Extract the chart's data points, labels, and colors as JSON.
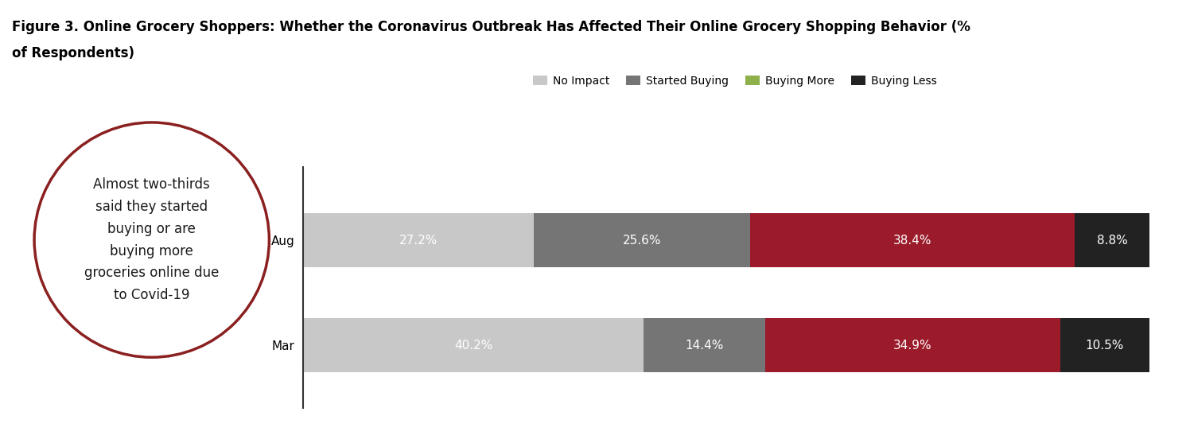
{
  "title_line1": "Figure 3. Online Grocery Shoppers: Whether the Coronavirus Outbreak Has Affected Their Online Grocery Shopping Behavior (%",
  "title_line2": "of Respondents)",
  "categories": [
    "Aug",
    "Mar"
  ],
  "segments": [
    "No Impact",
    "Started Buying",
    "Buying More",
    "Buying Less"
  ],
  "values": {
    "Aug": [
      27.2,
      25.6,
      38.4,
      8.8
    ],
    "Mar": [
      40.2,
      14.4,
      34.9,
      10.5
    ]
  },
  "bar_colors": [
    "#c8c8c8",
    "#757575",
    "#9b1b2a",
    "#222222"
  ],
  "legend_colors": [
    "#c8c8c8",
    "#757575",
    "#8db04a",
    "#222222"
  ],
  "bar_height": 0.52,
  "circle_text": "Almost two-thirds\nsaid they started\nbuying or are\nbuying more\ngroceries online due\nto Covid-19",
  "circle_color": "#8b2020",
  "bg_color": "#ffffff",
  "title_fontsize": 12,
  "label_fontsize": 11,
  "legend_fontsize": 10,
  "axis_label_fontsize": 11,
  "circle_fontsize": 12
}
